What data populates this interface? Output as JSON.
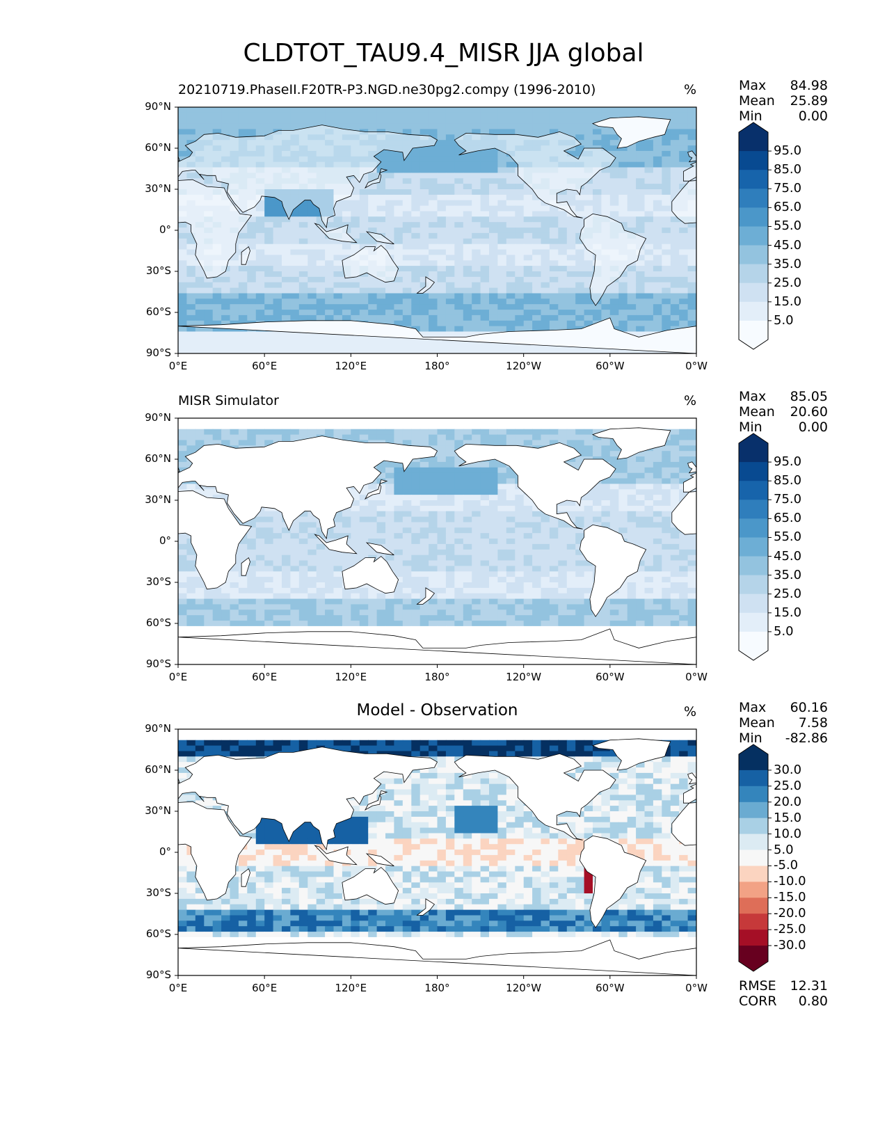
{
  "title": "CLDTOT_TAU9.4_MISR JJA global",
  "x_ticks": [
    "0°E",
    "60°E",
    "120°E",
    "180°",
    "120°W",
    "60°W",
    "0°W"
  ],
  "y_ticks": [
    "90°N",
    "60°N",
    "30°N",
    "0°",
    "30°S",
    "60°S",
    "90°S"
  ],
  "panels": [
    {
      "title_left": "20210719.PhaseII.F20TR-P3.NGD.ne30pg2.compy (1996-2010)",
      "title_center": "",
      "unit": "%",
      "stats": [
        {
          "label": "Max",
          "value": "84.98"
        },
        {
          "label": "Mean",
          "value": "25.89"
        },
        {
          "label": "Min",
          "value": "0.00"
        }
      ],
      "extra_stats": [],
      "colorbar_labels": [
        "95.0",
        "85.0",
        "75.0",
        "65.0",
        "55.0",
        "45.0",
        "35.0",
        "25.0",
        "15.0",
        "5.0"
      ],
      "colorbar_colors": [
        "#f7fbff",
        "#e3eef9",
        "#cfe1f2",
        "#b5d4e9",
        "#93c3df",
        "#6daed5",
        "#4b97c9",
        "#2f7ebc",
        "#1764ab",
        "#084a91",
        "#08306b"
      ]
    },
    {
      "title_left": "MISR Simulator",
      "title_center": "",
      "unit": "%",
      "stats": [
        {
          "label": "Max",
          "value": "85.05"
        },
        {
          "label": "Mean",
          "value": "20.60"
        },
        {
          "label": "Min",
          "value": "0.00"
        }
      ],
      "extra_stats": [],
      "colorbar_labels": [
        "95.0",
        "85.0",
        "75.0",
        "65.0",
        "55.0",
        "45.0",
        "35.0",
        "25.0",
        "15.0",
        "5.0"
      ],
      "colorbar_colors": [
        "#f7fbff",
        "#e3eef9",
        "#cfe1f2",
        "#b5d4e9",
        "#93c3df",
        "#6daed5",
        "#4b97c9",
        "#2f7ebc",
        "#1764ab",
        "#084a91",
        "#08306b"
      ]
    },
    {
      "title_left": "",
      "title_center": "Model - Observation",
      "unit": "%",
      "stats": [
        {
          "label": "Max",
          "value": "60.16"
        },
        {
          "label": "Mean",
          "value": "7.58"
        },
        {
          "label": "Min",
          "value": "-82.86"
        }
      ],
      "extra_stats": [
        {
          "label": "RMSE",
          "value": "12.31"
        },
        {
          "label": "CORR",
          "value": "0.80"
        }
      ],
      "colorbar_labels": [
        "30.0",
        "25.0",
        "20.0",
        "15.0",
        "10.0",
        "5.0",
        "-5.0",
        "-10.0",
        "-15.0",
        "-20.0",
        "-25.0",
        "-30.0"
      ],
      "colorbar_colors": [
        "#67001f",
        "#a50f26",
        "#c6393a",
        "#de6e58",
        "#f2a285",
        "#fbd4c0",
        "#f7f7f7",
        "#dcebf3",
        "#a9d0e5",
        "#6aabd1",
        "#3485bc",
        "#1661a4",
        "#053061"
      ]
    }
  ]
}
